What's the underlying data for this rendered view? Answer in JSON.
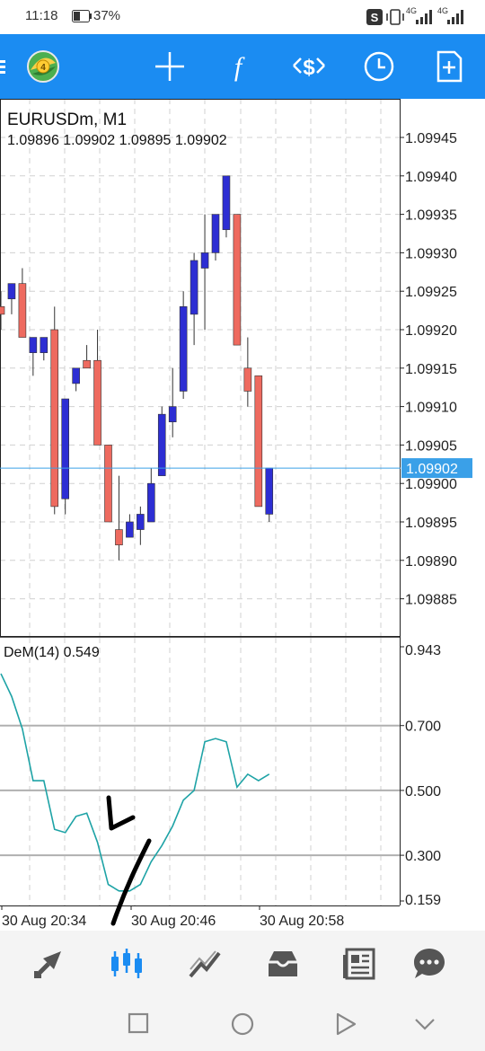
{
  "status_bar": {
    "time": "11:18",
    "battery": "37%",
    "network_1": "4G",
    "network_2": "4G"
  },
  "toolbar": {
    "buttons": [
      {
        "name": "menu-icon"
      },
      {
        "name": "app-logo-icon"
      },
      {
        "name": "crosshair-icon"
      },
      {
        "name": "function-icon"
      },
      {
        "name": "trade-icon"
      },
      {
        "name": "clock-icon"
      },
      {
        "name": "new-chart-icon"
      }
    ]
  },
  "chart_data": [
    {
      "type": "candlestick",
      "title": "EURUSDm, M1",
      "ohlc_label": "1.09896 1.09902 1.09895 1.09902",
      "ylim": [
        1.0988,
        1.0995
      ],
      "y_ticks": [
        "1.09945",
        "1.09940",
        "1.09935",
        "1.09930",
        "1.09925",
        "1.09920",
        "1.09915",
        "1.09910",
        "1.09905",
        "1.09900",
        "1.09895",
        "1.09890",
        "1.09885"
      ],
      "current_price": "1.09902",
      "bull_color": "#2d2ed3",
      "bear_color": "#ee6a5f",
      "candles": [
        {
          "o": 1.09923,
          "h": 1.09925,
          "l": 1.0992,
          "c": 1.09922
        },
        {
          "o": 1.09924,
          "h": 1.09926,
          "l": 1.09922,
          "c": 1.09926
        },
        {
          "o": 1.09926,
          "h": 1.09928,
          "l": 1.09919,
          "c": 1.09919
        },
        {
          "o": 1.09917,
          "h": 1.09919,
          "l": 1.09914,
          "c": 1.09919
        },
        {
          "o": 1.09917,
          "h": 1.09919,
          "l": 1.09916,
          "c": 1.09919
        },
        {
          "o": 1.0992,
          "h": 1.09923,
          "l": 1.09896,
          "c": 1.09897
        },
        {
          "o": 1.09898,
          "h": 1.09911,
          "l": 1.09896,
          "c": 1.09911
        },
        {
          "o": 1.09913,
          "h": 1.09915,
          "l": 1.09912,
          "c": 1.09915
        },
        {
          "o": 1.09916,
          "h": 1.09918,
          "l": 1.09915,
          "c": 1.09915
        },
        {
          "o": 1.09916,
          "h": 1.0992,
          "l": 1.09905,
          "c": 1.09905
        },
        {
          "o": 1.09905,
          "h": 1.09905,
          "l": 1.09895,
          "c": 1.09895
        },
        {
          "o": 1.09894,
          "h": 1.09901,
          "l": 1.0989,
          "c": 1.09892
        },
        {
          "o": 1.09893,
          "h": 1.09896,
          "l": 1.09893,
          "c": 1.09895
        },
        {
          "o": 1.09894,
          "h": 1.09897,
          "l": 1.09892,
          "c": 1.09896
        },
        {
          "o": 1.09895,
          "h": 1.09902,
          "l": 1.09895,
          "c": 1.099
        },
        {
          "o": 1.09901,
          "h": 1.0991,
          "l": 1.09901,
          "c": 1.09909
        },
        {
          "o": 1.09908,
          "h": 1.09915,
          "l": 1.09906,
          "c": 1.0991
        },
        {
          "o": 1.09912,
          "h": 1.09925,
          "l": 1.09911,
          "c": 1.09923
        },
        {
          "o": 1.09922,
          "h": 1.0993,
          "l": 1.09918,
          "c": 1.09929
        },
        {
          "o": 1.09928,
          "h": 1.09935,
          "l": 1.0992,
          "c": 1.0993
        },
        {
          "o": 1.0993,
          "h": 1.09935,
          "l": 1.09929,
          "c": 1.09935
        },
        {
          "o": 1.09933,
          "h": 1.0994,
          "l": 1.09932,
          "c": 1.0994
        },
        {
          "o": 1.09935,
          "h": 1.09935,
          "l": 1.09918,
          "c": 1.09918
        },
        {
          "o": 1.09915,
          "h": 1.09919,
          "l": 1.0991,
          "c": 1.09912
        },
        {
          "o": 1.09914,
          "h": 1.09914,
          "l": 1.09897,
          "c": 1.09897
        },
        {
          "o": 1.09896,
          "h": 1.09902,
          "l": 1.09895,
          "c": 1.09902
        }
      ]
    },
    {
      "type": "line",
      "title": "DeM(14) 0.549",
      "ylim": [
        0.159,
        0.943
      ],
      "y_ticks": [
        "0.943",
        "0.700",
        "0.500",
        "0.300",
        "0.159"
      ],
      "levels": [
        0.7,
        0.5,
        0.3
      ],
      "line_color": "#1ea3a6",
      "values": [
        0.86,
        0.79,
        0.69,
        0.53,
        0.53,
        0.38,
        0.37,
        0.42,
        0.43,
        0.34,
        0.21,
        0.19,
        0.19,
        0.21,
        0.28,
        0.33,
        0.39,
        0.47,
        0.5,
        0.65,
        0.66,
        0.65,
        0.51,
        0.55,
        0.53,
        0.55
      ],
      "x_labels": [
        "30 Aug 20:34",
        "30 Aug 20:46",
        "30 Aug 20:58"
      ]
    }
  ],
  "bottom_nav": {
    "items": [
      {
        "name": "quotes-icon"
      },
      {
        "name": "chart-icon"
      },
      {
        "name": "trade-icon"
      },
      {
        "name": "history-icon"
      },
      {
        "name": "news-icon"
      },
      {
        "name": "chat-icon"
      }
    ]
  }
}
